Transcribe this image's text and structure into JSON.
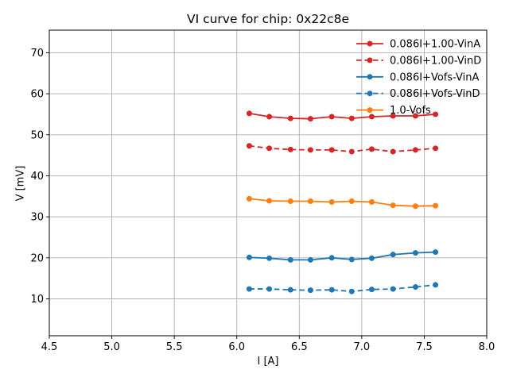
{
  "chart_data": {
    "type": "line",
    "title": "VI curve for chip: 0x22c8e",
    "xlabel": "I [A]",
    "ylabel": "V [mV]",
    "xlim": [
      4.5,
      8.0
    ],
    "ylim": [
      1.0,
      75.5
    ],
    "xticks": [
      4.5,
      5.0,
      5.5,
      6.0,
      6.5,
      7.0,
      7.5,
      8.0
    ],
    "xtick_labels": [
      "4.5",
      "5.0",
      "5.5",
      "6.0",
      "6.5",
      "7.0",
      "7.5",
      "8.0"
    ],
    "yticks": [
      10,
      20,
      30,
      40,
      50,
      60,
      70
    ],
    "ytick_labels": [
      "10",
      "20",
      "30",
      "40",
      "50",
      "60",
      "70"
    ],
    "grid": true,
    "grid_color": "#b0b0b0",
    "background": "#ffffff",
    "legend_position": "upper right",
    "marker": "circle",
    "x": [
      6.1,
      6.26,
      6.43,
      6.59,
      6.76,
      6.92,
      7.08,
      7.25,
      7.43,
      7.59
    ],
    "series": [
      {
        "name": "0.086I+1.00-VinA",
        "color": "#d62728",
        "style": "solid",
        "values": [
          55.2,
          54.4,
          54.0,
          53.9,
          54.4,
          54.0,
          54.4,
          54.6,
          54.6,
          55.0
        ]
      },
      {
        "name": "0.086I+1.00-VinD",
        "color": "#d62728",
        "style": "dashed",
        "values": [
          47.3,
          46.7,
          46.4,
          46.3,
          46.3,
          45.9,
          46.5,
          45.9,
          46.3,
          46.7
        ]
      },
      {
        "name": "0.086I+Vofs-VinA",
        "color": "#1f77b4",
        "style": "solid",
        "values": [
          20.1,
          19.9,
          19.5,
          19.5,
          20.0,
          19.6,
          19.9,
          20.8,
          21.2,
          21.4
        ]
      },
      {
        "name": "0.086I+Vofs-VinD",
        "color": "#1f77b4",
        "style": "dashed",
        "values": [
          12.4,
          12.4,
          12.2,
          12.1,
          12.2,
          11.8,
          12.3,
          12.4,
          12.9,
          13.4
        ]
      },
      {
        "name": "1.0-Vofs",
        "color": "#ff7f0e",
        "style": "solid",
        "values": [
          34.4,
          33.9,
          33.8,
          33.8,
          33.6,
          33.8,
          33.6,
          32.8,
          32.6,
          32.7
        ]
      }
    ]
  }
}
